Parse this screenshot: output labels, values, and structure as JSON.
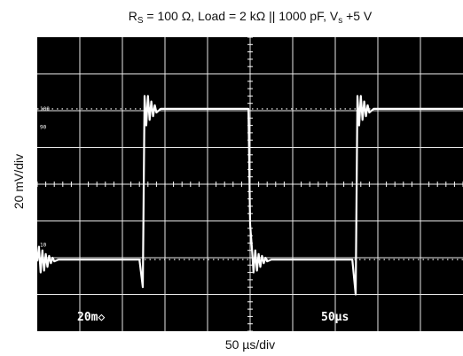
{
  "title": {
    "prefix": "R",
    "sub": "S",
    "main": " = 100 Ω, Load = 2 kΩ || 1000 pF,  V",
    "sub2": "s",
    "tail": " +5 V"
  },
  "chart_data": {
    "type": "line",
    "title": "R_S = 100 Ω, Load = 2 kΩ || 1000 pF, V_s +5 V",
    "xlabel": "50 µs/div",
    "ylabel": "20 mV/div",
    "divisions": {
      "x": 10,
      "y": 8
    },
    "grid": true,
    "xlim": [
      0,
      500
    ],
    "ylim": [
      -80,
      80
    ],
    "x_unit": "µs",
    "y_unit": "mV",
    "reference_markers": [
      "100",
      "90",
      "10",
      "0%"
    ],
    "scope_readouts": [
      "20m◇",
      "50µs"
    ],
    "series": [
      {
        "x": [
          0,
          2,
          4,
          6,
          8,
          10,
          12,
          14,
          16,
          18,
          20,
          25,
          30,
          40,
          60,
          80,
          100,
          120,
          124,
          126,
          128,
          130,
          132,
          134,
          136,
          138,
          140,
          145,
          150,
          160,
          180,
          200,
          220,
          240,
          248,
          250,
          252,
          254,
          256,
          258,
          260,
          262,
          264,
          266,
          268,
          270,
          275,
          280,
          290,
          310,
          330,
          350,
          370,
          374,
          376,
          378,
          380,
          382,
          384,
          386,
          388,
          390,
          395,
          400,
          410,
          430,
          450,
          470,
          490,
          498,
          500
        ],
        "y": [
          -42,
          -34,
          -48,
          -36,
          -47,
          -38,
          -45,
          -39,
          -43,
          -40,
          -42,
          -41,
          -41,
          -41,
          -41,
          -41,
          -41,
          -41,
          -56,
          48,
          32,
          48,
          35,
          45,
          37,
          43,
          39,
          41,
          41,
          41,
          41,
          41,
          41,
          41,
          41,
          -22,
          -34,
          -48,
          -36,
          -47,
          -38,
          -45,
          -39,
          -43,
          -40,
          -42,
          -41,
          -41,
          -41,
          -41,
          -41,
          -41,
          -41,
          -60,
          48,
          32,
          48,
          35,
          45,
          37,
          43,
          39,
          41,
          41,
          41,
          41,
          41,
          41,
          41,
          41,
          41
        ]
      }
    ]
  }
}
